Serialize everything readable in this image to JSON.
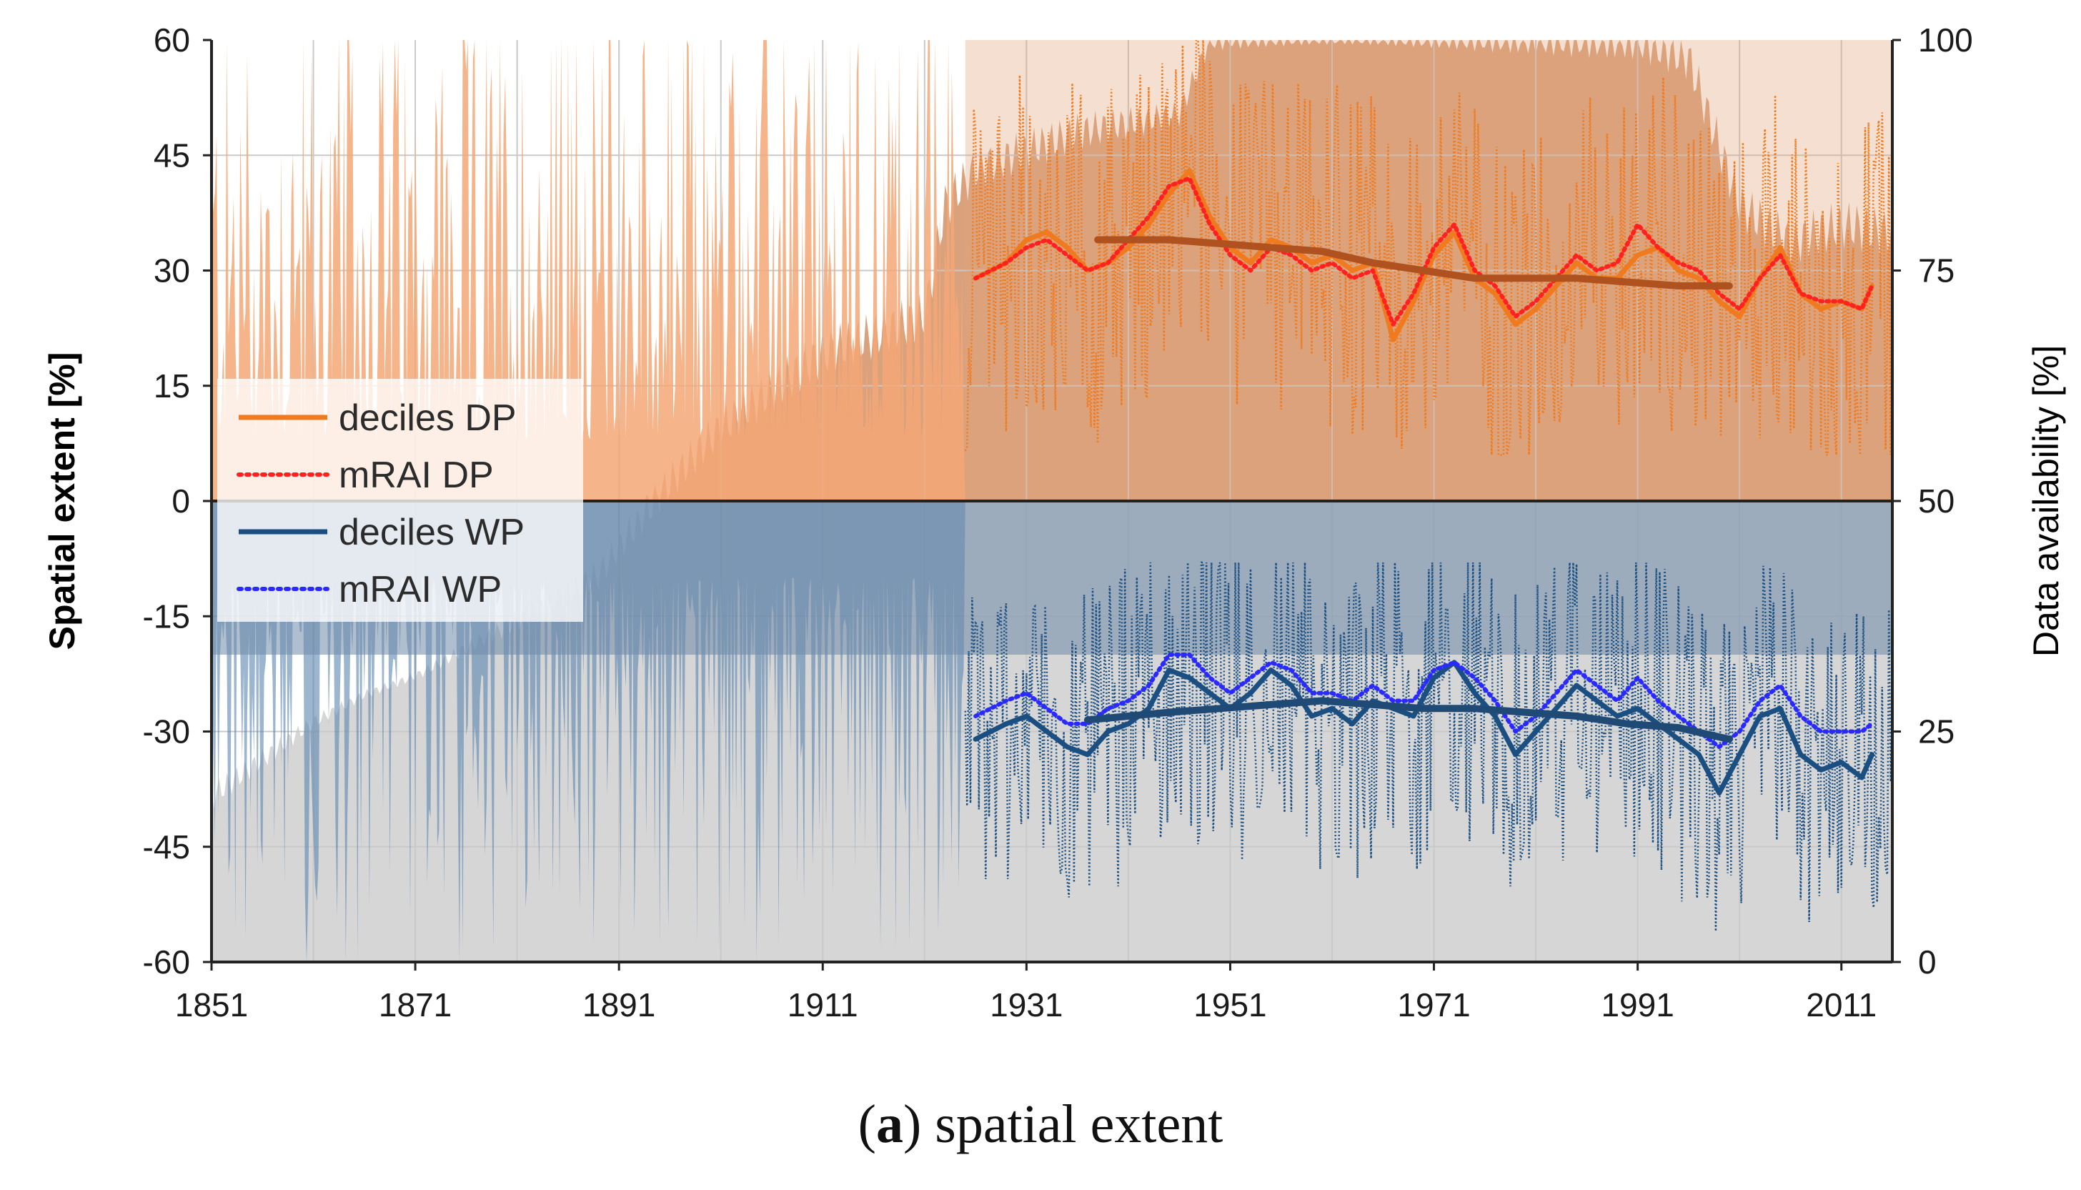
{
  "chart_data": {
    "type": "line",
    "title": "",
    "caption_label": "a",
    "caption_text": "spatial extent",
    "xlabel": "",
    "ylabel": "Spatial extent [%]",
    "y2label": "Data availability [%]",
    "xlim": [
      1851,
      2016
    ],
    "ylim": [
      -60,
      60
    ],
    "y2lim": [
      0,
      100
    ],
    "x_ticks": [
      1851,
      1871,
      1891,
      1911,
      1931,
      1951,
      1971,
      1991,
      2011
    ],
    "y_ticks": [
      60,
      45,
      30,
      15,
      0,
      -15,
      -30,
      -45,
      -60
    ],
    "y2_ticks": [
      100,
      75,
      50,
      25,
      0
    ],
    "grid": true,
    "legend_position": "left",
    "legend": [
      {
        "label": "deciles DP",
        "style": "solid",
        "color": "#f07a1e"
      },
      {
        "label": "mRAI DP",
        "style": "dotted",
        "color": "#ff2020"
      },
      {
        "label": "deciles WP",
        "style": "solid",
        "color": "#1b4f82"
      },
      {
        "label": "mRAI WP",
        "style": "dotted",
        "color": "#2a2aff"
      }
    ],
    "series": [
      {
        "name": "deciles DP (smoothed)",
        "x": [
          1926,
          1929,
          1931,
          1933,
          1935,
          1937,
          1939,
          1941,
          1943,
          1945,
          1947,
          1949,
          1951,
          1953,
          1955,
          1957,
          1959,
          1961,
          1963,
          1965,
          1967,
          1969,
          1971,
          1973,
          1975,
          1977,
          1979,
          1981,
          1983,
          1985,
          1987,
          1989,
          1991,
          1993,
          1995,
          1997,
          1999,
          2001,
          2003,
          2005,
          2007,
          2009,
          2011,
          2013,
          2014
        ],
        "values": [
          29,
          31,
          34,
          35,
          33,
          30,
          31,
          33,
          36,
          40,
          43,
          37,
          33,
          31,
          34,
          33,
          31,
          32,
          30,
          31,
          21,
          26,
          32,
          35,
          29,
          27,
          23,
          25,
          28,
          31,
          29,
          29,
          32,
          33,
          30,
          29,
          26,
          24,
          29,
          33,
          27,
          25,
          26,
          25,
          28
        ]
      },
      {
        "name": "mRAI DP (smoothed)",
        "x": [
          1926,
          1929,
          1931,
          1933,
          1935,
          1937,
          1939,
          1941,
          1943,
          1945,
          1947,
          1949,
          1951,
          1953,
          1955,
          1957,
          1959,
          1961,
          1963,
          1965,
          1967,
          1969,
          1971,
          1973,
          1975,
          1977,
          1979,
          1981,
          1983,
          1985,
          1987,
          1989,
          1991,
          1993,
          1995,
          1997,
          1999,
          2001,
          2003,
          2005,
          2007,
          2009,
          2011,
          2013,
          2014
        ],
        "values": [
          29,
          31,
          33,
          34,
          32,
          30,
          31,
          34,
          37,
          41,
          42,
          36,
          32,
          30,
          33,
          32,
          30,
          31,
          29,
          30,
          23,
          27,
          33,
          36,
          30,
          28,
          24,
          26,
          29,
          32,
          30,
          31,
          36,
          33,
          31,
          30,
          27,
          25,
          29,
          32,
          27,
          26,
          26,
          25,
          28
        ]
      },
      {
        "name": "deciles DP trend",
        "x": [
          1938,
          1945,
          1950,
          1955,
          1960,
          1965,
          1970,
          1975,
          1980,
          1985,
          1990,
          1995,
          2000
        ],
        "values": [
          34,
          34,
          33.5,
          33,
          32.5,
          31,
          30,
          29,
          29,
          29,
          28.5,
          28,
          28
        ]
      },
      {
        "name": "deciles WP (smoothed)",
        "x": [
          1926,
          1929,
          1931,
          1933,
          1935,
          1937,
          1939,
          1941,
          1943,
          1945,
          1947,
          1949,
          1951,
          1953,
          1955,
          1957,
          1959,
          1961,
          1963,
          1965,
          1967,
          1969,
          1971,
          1973,
          1975,
          1977,
          1979,
          1981,
          1983,
          1985,
          1987,
          1989,
          1991,
          1993,
          1995,
          1997,
          1999,
          2001,
          2003,
          2005,
          2007,
          2009,
          2011,
          2013,
          2014
        ],
        "values": [
          -31,
          -29,
          -28,
          -30,
          -32,
          -33,
          -30,
          -29,
          -27,
          -22,
          -23,
          -25,
          -27,
          -25,
          -22,
          -24,
          -28,
          -27,
          -29,
          -26,
          -27,
          -28,
          -23,
          -21,
          -25,
          -28,
          -33,
          -30,
          -27,
          -24,
          -26,
          -28,
          -27,
          -29,
          -31,
          -33,
          -38,
          -33,
          -28,
          -27,
          -33,
          -35,
          -34,
          -36,
          -33
        ]
      },
      {
        "name": "mRAI WP (smoothed)",
        "x": [
          1926,
          1929,
          1931,
          1933,
          1935,
          1937,
          1939,
          1941,
          1943,
          1945,
          1947,
          1949,
          1951,
          1953,
          1955,
          1957,
          1959,
          1961,
          1963,
          1965,
          1967,
          1969,
          1971,
          1973,
          1975,
          1977,
          1979,
          1981,
          1983,
          1985,
          1987,
          1989,
          1991,
          1993,
          1995,
          1997,
          1999,
          2001,
          2003,
          2005,
          2007,
          2009,
          2011,
          2013,
          2014
        ],
        "values": [
          -28,
          -26,
          -25,
          -27,
          -29,
          -29,
          -27,
          -26,
          -24,
          -20,
          -20,
          -23,
          -25,
          -23,
          -21,
          -22,
          -25,
          -25,
          -26,
          -24,
          -26,
          -26,
          -22,
          -21,
          -23,
          -26,
          -30,
          -28,
          -25,
          -22,
          -24,
          -26,
          -23,
          -26,
          -28,
          -30,
          -32,
          -30,
          -26,
          -24,
          -28,
          -30,
          -30,
          -30,
          -29
        ]
      },
      {
        "name": "deciles WP trend",
        "x": [
          1937,
          1945,
          1950,
          1955,
          1960,
          1965,
          1970,
          1975,
          1980,
          1985,
          1990,
          1995,
          2000
        ],
        "values": [
          -28.5,
          -27.5,
          -27,
          -26.5,
          -26,
          -26.5,
          -27,
          -27,
          -27.5,
          -28,
          -29,
          -29.5,
          -31
        ]
      }
    ],
    "data_availability_pct": {
      "x": [
        1851,
        1856,
        1861,
        1866,
        1871,
        1876,
        1881,
        1886,
        1889,
        1891,
        1896,
        1901,
        1906,
        1911,
        1916,
        1921,
        1923,
        1926,
        1931,
        1936,
        1941,
        1946,
        1949,
        1951,
        1956,
        1961,
        1966,
        1971,
        1976,
        1981,
        1986,
        1991,
        1996,
        2001,
        2006,
        2011,
        2016
      ],
      "values": [
        18,
        22,
        26,
        29,
        31,
        34,
        37,
        40,
        42,
        45,
        52,
        58,
        62,
        66,
        68,
        70,
        82,
        86,
        88,
        90,
        91,
        92,
        100,
        100,
        100,
        100,
        100,
        100,
        100,
        100,
        100,
        100,
        98,
        82,
        78,
        80,
        79
      ]
    }
  }
}
